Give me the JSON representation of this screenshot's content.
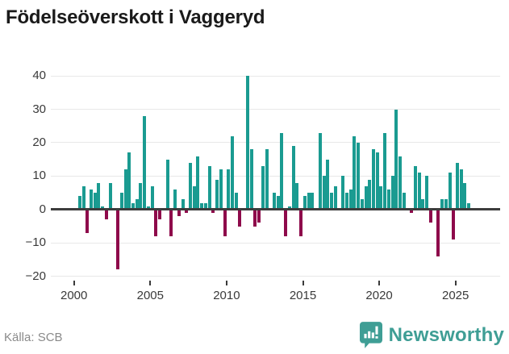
{
  "title": "Födelseöverskott i Vaggeryd",
  "footer": {
    "source": "Källa: SCB",
    "brand": "Newsworthy"
  },
  "colors": {
    "positive": "#1a9b91",
    "negative": "#8e0a4b",
    "axis": "#3d3d3d",
    "grid": "#e8e8e8",
    "brand": "#3f9e95",
    "text": "#3a3a3a",
    "muted": "#8a8a8a"
  },
  "chart_data": {
    "type": "bar",
    "title": "Födelseöverskott i Vaggeryd",
    "xlabel": "",
    "ylabel": "",
    "period": "quarterly",
    "start": "2000 Q2",
    "end": "2025 Q4",
    "values": [
      4,
      7,
      -7,
      6,
      5,
      8,
      1,
      -3,
      8,
      0,
      -18,
      5,
      12,
      17,
      2,
      3,
      8,
      28,
      1,
      7,
      -8,
      -3,
      0,
      15,
      -8,
      6,
      -2,
      3,
      -1,
      14,
      7,
      16,
      2,
      2,
      13,
      -1,
      9,
      12,
      -8,
      12,
      22,
      5,
      -5,
      0,
      40,
      18,
      -5,
      -4,
      13,
      18,
      0,
      5,
      4,
      23,
      -8,
      1,
      19,
      8,
      -8,
      4,
      5,
      5,
      0,
      23,
      10,
      15,
      5,
      7,
      0,
      10,
      5,
      6,
      22,
      20,
      3,
      7,
      9,
      18,
      17,
      7,
      23,
      6,
      10,
      30,
      16,
      5,
      0,
      -1,
      13,
      11,
      3,
      10,
      -4,
      0,
      -14,
      3,
      3,
      11,
      -9,
      14,
      12,
      8,
      2
    ],
    "x_tick_years": [
      2000,
      2005,
      2010,
      2015,
      2020,
      2025
    ],
    "y_ticks": [
      40,
      30,
      20,
      10,
      0,
      -10,
      -20
    ],
    "ylim": [
      -20,
      40
    ],
    "grid": "horizontal",
    "legend": "none",
    "positive_color": "#1a9b91",
    "negative_color": "#8e0a4b"
  }
}
